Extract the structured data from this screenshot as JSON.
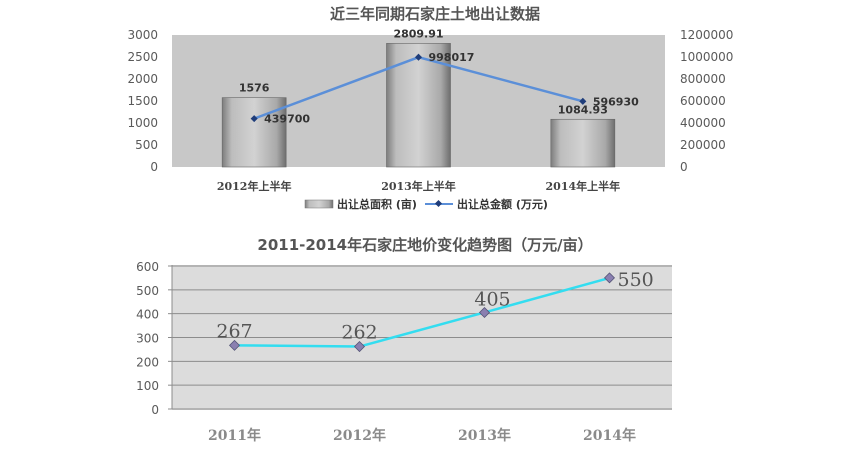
{
  "chart_data": [
    {
      "type": "bar",
      "title": "近三年同期石家庄土地出让数据",
      "categories": [
        "2012年上半年",
        "2013年上半年",
        "2014年上半年"
      ],
      "series": [
        {
          "name": "出让总面积 (亩)",
          "type": "bar",
          "axis": "left",
          "values": [
            1576,
            2809.91,
            1084.93
          ],
          "labels": [
            "1576",
            "2809.91",
            "1084.93"
          ]
        },
        {
          "name": "出让总金额 (万元)",
          "type": "line",
          "axis": "right",
          "values": [
            439700,
            998017,
            596930
          ],
          "labels": [
            "439700",
            "998017",
            "596930"
          ]
        }
      ],
      "ylim": [
        0,
        3000
      ],
      "yticks": [
        "3000",
        "2500",
        "2000",
        "1500",
        "1000",
        "500",
        "0"
      ],
      "y2lim": [
        0,
        1200000
      ],
      "y2ticks": [
        "1200000",
        "1000000",
        "800000",
        "600000",
        "400000",
        "200000",
        "0"
      ],
      "grid": false,
      "legend_position": "bottom",
      "colors": {
        "bar": "#a6a6a6",
        "line": "#5b8fd8",
        "plot_bg": "#c8c8c8"
      }
    },
    {
      "type": "line",
      "title": "2011-2014年石家庄地价变化趋势图（万元/亩）",
      "categories": [
        "2011年",
        "2012年",
        "2013年",
        "2014年"
      ],
      "series": [
        {
          "values": [
            267,
            262,
            405,
            550
          ],
          "labels": [
            "267",
            "262",
            "405",
            "550"
          ]
        }
      ],
      "ylim": [
        0,
        600
      ],
      "yticks": [
        "600",
        "500",
        "400",
        "300",
        "200",
        "100",
        "0"
      ],
      "grid": true,
      "colors": {
        "line": "#33ddf0",
        "marker": "#8a7fb0",
        "plot_bg": "#dcdcdc"
      }
    }
  ]
}
